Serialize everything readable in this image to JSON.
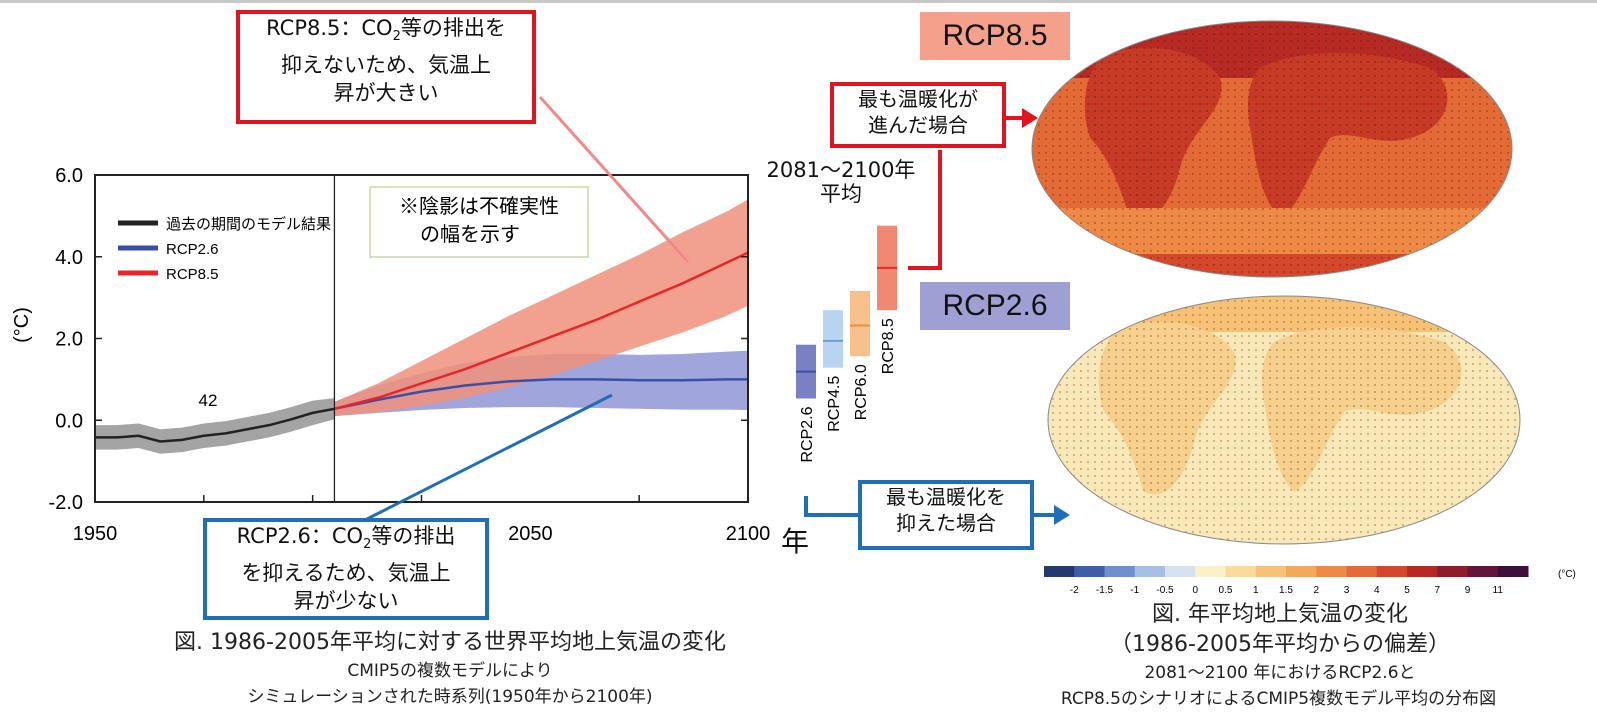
{
  "chart_data": {
    "type": "line",
    "title": "",
    "xlabel": "年",
    "ylabel": "(°C)",
    "xlim": [
      1950,
      2100
    ],
    "ylim": [
      -2.0,
      6.0
    ],
    "x_ticks": [
      1950,
      2050,
      2100
    ],
    "x_tick_labels": [
      "1950",
      "2050",
      "2100"
    ],
    "y_ticks": [
      -2,
      0,
      2,
      4,
      6
    ],
    "y_tick_labels": [
      "-2.0",
      "0.0",
      "2.0",
      "4.0",
      "6.0"
    ],
    "divider_year": 2005,
    "annotation": "42",
    "legend": [
      "過去の期間のモデル結果",
      "RCP2.6",
      "RCP8.5"
    ],
    "shade_note": [
      "※陰影は不確実性",
      "の幅を示す"
    ],
    "series": [
      {
        "name": "過去の期間のモデル結果",
        "color": "#222222",
        "band_color": "#9a9a9a",
        "x": [
          1950,
          1955,
          1960,
          1965,
          1970,
          1975,
          1980,
          1985,
          1990,
          1995,
          2000,
          2005
        ],
        "values": [
          -0.42,
          -0.42,
          -0.38,
          -0.52,
          -0.48,
          -0.38,
          -0.32,
          -0.22,
          -0.12,
          0.02,
          0.18,
          0.28
        ],
        "lower": [
          -0.72,
          -0.72,
          -0.68,
          -0.82,
          -0.78,
          -0.68,
          -0.62,
          -0.52,
          -0.42,
          -0.28,
          -0.12,
          0.02
        ],
        "upper": [
          -0.12,
          -0.12,
          -0.08,
          -0.22,
          -0.18,
          -0.08,
          -0.02,
          0.08,
          0.18,
          0.32,
          0.48,
          0.54
        ]
      },
      {
        "name": "RCP2.6",
        "color": "#3a4fa8",
        "band_color": "#8f96d6",
        "x": [
          2005,
          2015,
          2025,
          2035,
          2045,
          2055,
          2065,
          2075,
          2085,
          2095,
          2100
        ],
        "values": [
          0.28,
          0.5,
          0.7,
          0.85,
          0.95,
          1.0,
          1.0,
          0.98,
          0.98,
          1.0,
          1.0
        ],
        "lower": [
          0.1,
          0.18,
          0.25,
          0.3,
          0.32,
          0.32,
          0.3,
          0.28,
          0.26,
          0.26,
          0.25
        ],
        "upper": [
          0.45,
          0.85,
          1.15,
          1.4,
          1.55,
          1.62,
          1.62,
          1.6,
          1.62,
          1.68,
          1.7
        ]
      },
      {
        "name": "RCP8.5",
        "color": "#e8262a",
        "band_color": "#f0907a",
        "x": [
          2005,
          2015,
          2025,
          2035,
          2045,
          2055,
          2065,
          2075,
          2085,
          2095,
          2100
        ],
        "values": [
          0.28,
          0.55,
          0.9,
          1.25,
          1.65,
          2.05,
          2.45,
          2.9,
          3.35,
          3.85,
          4.1
        ],
        "lower": [
          0.1,
          0.2,
          0.35,
          0.55,
          0.8,
          1.1,
          1.45,
          1.8,
          2.15,
          2.55,
          2.8
        ],
        "upper": [
          0.45,
          0.9,
          1.45,
          2.0,
          2.55,
          3.05,
          3.55,
          4.05,
          4.6,
          5.1,
          5.4
        ]
      }
    ],
    "scenario_bars": {
      "title": [
        "2081～2100年",
        "平均"
      ],
      "items": [
        {
          "name": "RCP2.6",
          "mean": 1.0,
          "low": 0.3,
          "high": 1.7,
          "color": "#7a80c4",
          "line": "#3a4fa8"
        },
        {
          "name": "RCP4.5",
          "mean": 1.8,
          "low": 1.1,
          "high": 2.6,
          "color": "#b9d4f0",
          "line": "#6a9fd8"
        },
        {
          "name": "RCP6.0",
          "mean": 2.2,
          "low": 1.4,
          "high": 3.1,
          "color": "#f8c08a",
          "line": "#e8903a"
        },
        {
          "name": "RCP8.5",
          "mean": 3.7,
          "low": 2.6,
          "high": 4.8,
          "color": "#f08872",
          "line": "#e8262a"
        }
      ]
    }
  },
  "callouts": {
    "rcp85": {
      "lines": [
        "RCP8.5：CO",
        "等の排出を",
        "抑えないため、気温上",
        "昇が大きい"
      ],
      "sub": "2"
    },
    "rcp26": {
      "lines": [
        "RCP2.6：CO",
        "等の排出",
        "を抑えるため、気温上",
        "昇が少ない"
      ],
      "sub": "2"
    },
    "most_warming": [
      "最も温暖化が",
      "進んだ場合"
    ],
    "least_warming": [
      "最も温暖化を",
      "抑えた場合"
    ]
  },
  "maps": {
    "rcp85_label": "RCP8.5",
    "rcp26_label": "RCP2.6",
    "rcp85_label_color": "#f4a08a",
    "rcp26_label_color": "#9ea0d4"
  },
  "colorbar": {
    "ticks": [
      "-2",
      "-1.5",
      "-1",
      "-0.5",
      "0",
      "0.5",
      "1",
      "1.5",
      "2",
      "3",
      "4",
      "5",
      "7",
      "9",
      "11"
    ],
    "unit": "(°C)",
    "colors": [
      "#24396e",
      "#3d5fa8",
      "#6f8fcf",
      "#a6bfe4",
      "#d6e2f2",
      "#fbf0c8",
      "#fadb9a",
      "#f7c276",
      "#f3a85a",
      "#ee8a45",
      "#e46a36",
      "#d4472a",
      "#b72a24",
      "#8e1c2a",
      "#64143a",
      "#3e0f3a"
    ]
  },
  "captions": {
    "left_main": "図. 1986-2005年平均に対する世界平均地上気温の変化",
    "left_sub1": "CMIP5の複数モデルにより",
    "left_sub2": "シミュレーションされた時系列(1950年から2100年)",
    "right_main1": "図. 年平均地上気温の変化",
    "right_main2": "（1986-2005年平均からの偏差）",
    "right_sub1": "2081～2100 年におけるRCP2.6と",
    "right_sub2": "RCP8.5のシナリオによるCMIP5複数モデル平均の分布図"
  }
}
